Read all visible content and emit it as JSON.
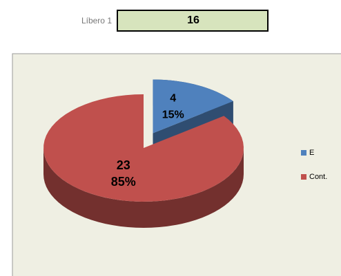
{
  "header": {
    "label": "Líbero 1",
    "value": 16
  },
  "chart_data": {
    "type": "pie",
    "three_d": true,
    "categories": [
      "E",
      "Cont."
    ],
    "values": [
      4,
      23
    ],
    "percent_labels": [
      "15%",
      "85%"
    ],
    "colors": [
      "#4f81bd",
      "#c0504d"
    ],
    "exploded": [
      true,
      false
    ],
    "legend": "right"
  }
}
